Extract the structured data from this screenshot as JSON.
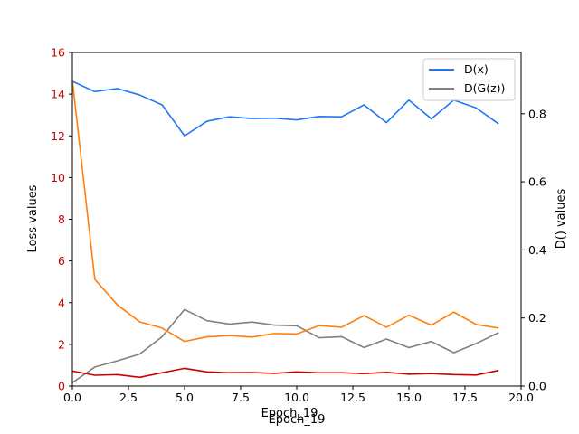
{
  "chart_data": {
    "type": "line",
    "xlabels": [
      "Epoch_19",
      "Epoch_19"
    ],
    "ylabel_left": "Loss values",
    "ylabel_right": "D() values",
    "xlim": [
      0,
      20
    ],
    "ylim_left": [
      0,
      16
    ],
    "ylim_right": [
      0,
      0.98
    ],
    "xticks": [
      "0.0",
      "2.5",
      "5.0",
      "7.5",
      "10.0",
      "12.5",
      "15.0",
      "17.5",
      "20.0"
    ],
    "yticks_left": [
      "0",
      "2",
      "4",
      "6",
      "8",
      "10",
      "12",
      "14",
      "16"
    ],
    "yticks_right": [
      "0.0",
      "0.2",
      "0.4",
      "0.6",
      "0.8"
    ],
    "left_tick_color": "#cc0000",
    "legend_position": "upper right",
    "x": [
      0,
      1,
      2,
      3,
      4,
      5,
      6,
      7,
      8,
      9,
      10,
      11,
      12,
      13,
      14,
      15,
      16,
      17,
      18,
      19
    ],
    "series": [
      {
        "name": "D(x)",
        "axis": "right",
        "color": "#1f77f4",
        "values": [
          0.895,
          0.865,
          0.874,
          0.855,
          0.826,
          0.735,
          0.778,
          0.791,
          0.786,
          0.787,
          0.782,
          0.792,
          0.791,
          0.826,
          0.774,
          0.84,
          0.785,
          0.84,
          0.817,
          0.77
        ]
      },
      {
        "name": "D(G(z))",
        "axis": "right",
        "color": "#808080",
        "values": [
          0.01,
          0.056,
          0.074,
          0.094,
          0.145,
          0.225,
          0.192,
          0.182,
          0.188,
          0.179,
          0.177,
          0.142,
          0.145,
          0.113,
          0.138,
          0.113,
          0.131,
          0.098,
          0.125,
          0.157
        ]
      },
      {
        "axis": "left",
        "color": "#ff7f0e",
        "values": [
          14.65,
          5.12,
          3.9,
          3.08,
          2.78,
          2.14,
          2.36,
          2.42,
          2.35,
          2.52,
          2.5,
          2.9,
          2.82,
          3.38,
          2.82,
          3.4,
          2.92,
          3.55,
          2.95,
          2.78
        ]
      },
      {
        "axis": "left",
        "color": "#cc0000",
        "values": [
          0.72,
          0.52,
          0.55,
          0.42,
          0.64,
          0.85,
          0.68,
          0.64,
          0.65,
          0.61,
          0.68,
          0.64,
          0.64,
          0.6,
          0.66,
          0.57,
          0.6,
          0.55,
          0.53,
          0.75
        ]
      }
    ]
  }
}
